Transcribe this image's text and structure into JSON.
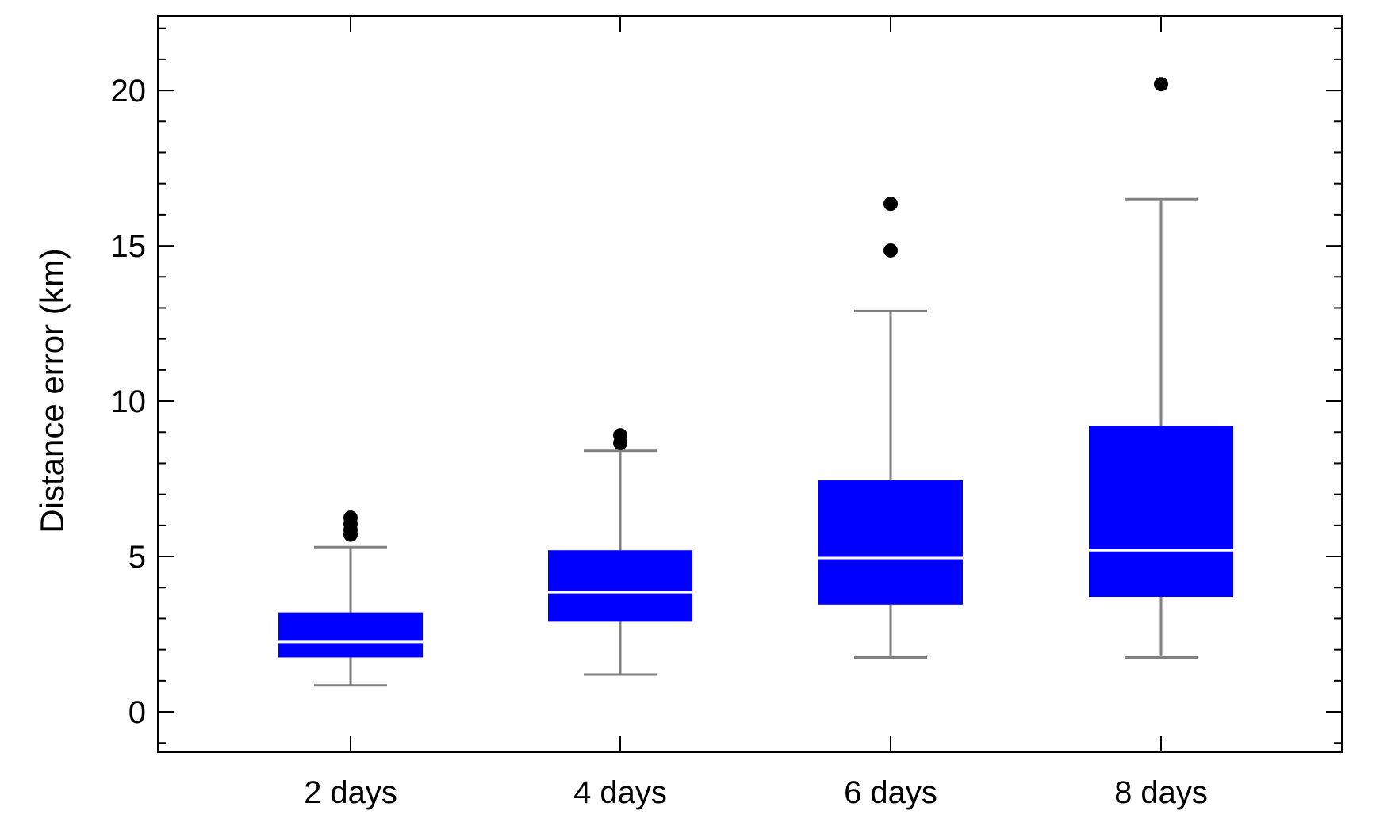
{
  "chart_data": {
    "type": "box",
    "xlabel": "",
    "ylabel": "Distance error (km)",
    "ylim": [
      -1.3,
      22.4
    ],
    "yticks": [
      0,
      5,
      10,
      15,
      20
    ],
    "minor_tick_step": 1,
    "grid": false,
    "categories": [
      "2 days",
      "4 days",
      "6 days",
      "8 days"
    ],
    "colors": {
      "box_fill": "#0000ff",
      "median_line": "#ffffff",
      "whisker": "#808080",
      "outlier": "#000000",
      "frame": "#000000"
    },
    "boxes": [
      {
        "category": "2 days",
        "whisker_low": 0.85,
        "q1": 1.75,
        "median": 2.25,
        "q3": 3.2,
        "whisker_high": 5.3,
        "outliers": [
          5.7,
          5.85,
          6.05,
          6.25
        ]
      },
      {
        "category": "4 days",
        "whisker_low": 1.2,
        "q1": 2.9,
        "median": 3.85,
        "q3": 5.2,
        "whisker_high": 8.4,
        "outliers": [
          8.65,
          8.9
        ]
      },
      {
        "category": "6 days",
        "whisker_low": 1.75,
        "q1": 3.45,
        "median": 4.95,
        "q3": 7.45,
        "whisker_high": 12.9,
        "outliers": [
          14.85,
          16.35
        ]
      },
      {
        "category": "8 days",
        "whisker_low": 1.75,
        "q1": 3.7,
        "median": 5.2,
        "q3": 9.2,
        "whisker_high": 16.5,
        "outliers": [
          20.2
        ]
      }
    ]
  }
}
